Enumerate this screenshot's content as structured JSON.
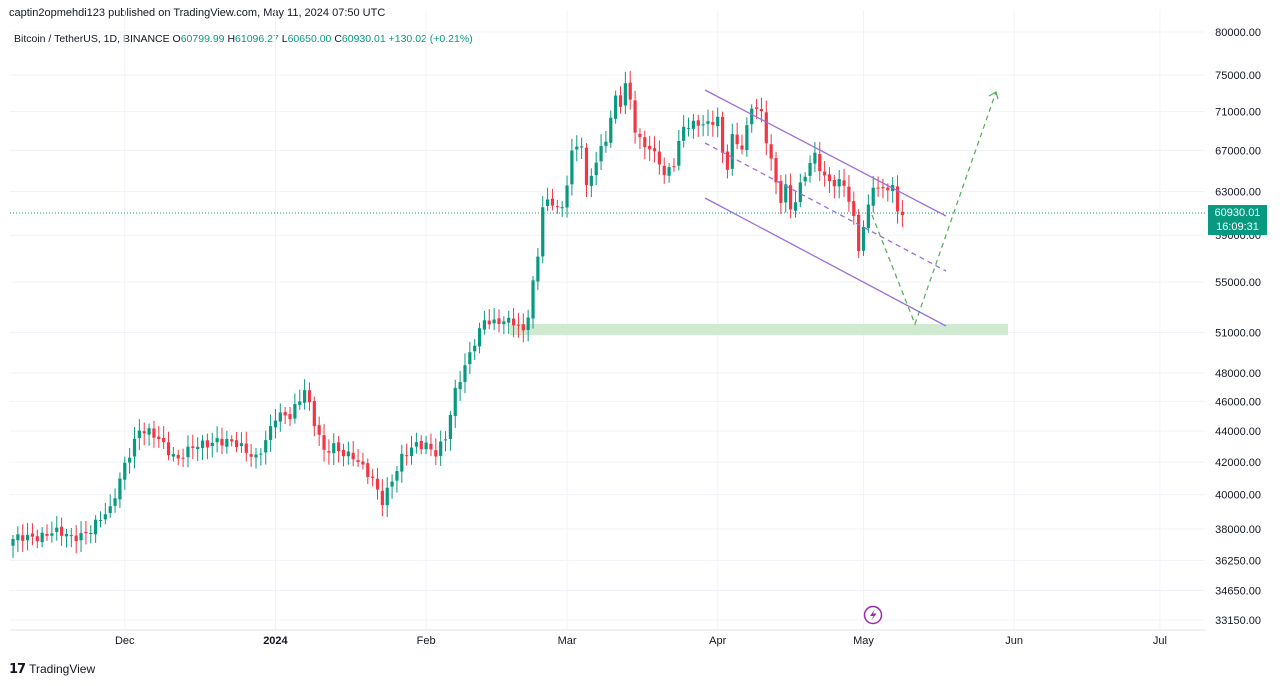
{
  "header": {
    "publisher": "captin2opmehdi123 published on TradingView.com, May 11, 2024 07:50 UTC",
    "symbol": "Bitcoin / TetherUS, 1D, BINANCE",
    "open_label": "O",
    "open": "60799.99",
    "high_label": "H",
    "high": "61096.27",
    "low_label": "L",
    "low": "60650.00",
    "close_label": "C",
    "close": "60930.01",
    "change": "+130.02 (+0.21%)"
  },
  "price_badge": {
    "price": "60930.01",
    "countdown": "16:09:31"
  },
  "footer": {
    "logo": "𝟭𝟳",
    "brand": "TradingView"
  },
  "colors": {
    "up": "#089981",
    "down": "#f23645",
    "channel": "#9c6ede",
    "projection": "#4caf50",
    "zone": "#c8e6c9"
  },
  "chart_data": {
    "type": "candlestick",
    "scale": "log",
    "y_ticks": [
      80000,
      75000,
      71000,
      67000,
      63000,
      59000,
      55000,
      51000,
      48000,
      46000,
      44000,
      42000,
      40000,
      38000,
      36250,
      34650,
      33150
    ],
    "y_tick_labels": [
      "80000.00",
      "75000.00",
      "71000.00",
      "67000.00",
      "63000.00",
      "59000.00",
      "55000.00",
      "51000.00",
      "48000.00",
      "46000.00",
      "44000.00",
      "42000.00",
      "40000.00",
      "38000.00",
      "36250.00",
      "34650.00",
      "33150.00"
    ],
    "x_ticks": [
      {
        "label": "Dec",
        "day": 23
      },
      {
        "label": "2024",
        "day": 54
      },
      {
        "label": "Feb",
        "day": 85
      },
      {
        "label": "Mar",
        "day": 114
      },
      {
        "label": "Apr",
        "day": 145
      },
      {
        "label": "May",
        "day": 175
      },
      {
        "label": "Jun",
        "day": 206
      },
      {
        "label": "Jul",
        "day": 236
      }
    ],
    "last_price": 60930.01,
    "anchors": [
      [
        0,
        37300
      ],
      [
        4,
        37600
      ],
      [
        8,
        37800
      ],
      [
        12,
        37500
      ],
      [
        16,
        38000
      ],
      [
        20,
        39000
      ],
      [
        23,
        42000
      ],
      [
        26,
        44000
      ],
      [
        30,
        43500
      ],
      [
        34,
        42200
      ],
      [
        38,
        43000
      ],
      [
        42,
        43500
      ],
      [
        46,
        43000
      ],
      [
        50,
        42400
      ],
      [
        52,
        43400
      ],
      [
        54,
        44800
      ],
      [
        57,
        45000
      ],
      [
        60,
        47000
      ],
      [
        62,
        44500
      ],
      [
        64,
        42500
      ],
      [
        66,
        43000
      ],
      [
        70,
        42400
      ],
      [
        72,
        41500
      ],
      [
        74,
        40800
      ],
      [
        76,
        39700
      ],
      [
        78,
        41000
      ],
      [
        80,
        42200
      ],
      [
        83,
        43000
      ],
      [
        85,
        43200
      ],
      [
        87,
        42700
      ],
      [
        89,
        43500
      ],
      [
        91,
        46500
      ],
      [
        93,
        48500
      ],
      [
        95,
        50500
      ],
      [
        97,
        52000
      ],
      [
        99,
        51500
      ],
      [
        101,
        51800
      ],
      [
        103,
        52000
      ],
      [
        105,
        51200
      ],
      [
        106,
        52500
      ],
      [
        108,
        57000
      ],
      [
        109,
        61500
      ],
      [
        111,
        62000
      ],
      [
        113,
        61500
      ],
      [
        115,
        66800
      ],
      [
        117,
        67500
      ],
      [
        118,
        63000
      ],
      [
        120,
        66000
      ],
      [
        122,
        68500
      ],
      [
        124,
        72500
      ],
      [
        125,
        71800
      ],
      [
        126,
        73500
      ],
      [
        127,
        72000
      ],
      [
        128,
        69000
      ],
      [
        129,
        68000
      ],
      [
        131,
        67500
      ],
      [
        133,
        66000
      ],
      [
        134,
        64300
      ],
      [
        136,
        65500
      ],
      [
        138,
        69500
      ],
      [
        139,
        69800
      ],
      [
        141,
        70000
      ],
      [
        143,
        69500
      ],
      [
        145,
        70000
      ],
      [
        146,
        66500
      ],
      [
        147,
        65500
      ],
      [
        148,
        68500
      ],
      [
        150,
        67500
      ],
      [
        151,
        69200
      ],
      [
        152,
        71500
      ],
      [
        154,
        70500
      ],
      [
        155,
        68000
      ],
      [
        157,
        64000
      ],
      [
        158,
        62500
      ],
      [
        159,
        63500
      ],
      [
        160,
        61500
      ],
      [
        161,
        62000
      ],
      [
        163,
        64500
      ],
      [
        165,
        66600
      ],
      [
        167,
        64500
      ],
      [
        169,
        63800
      ],
      [
        171,
        63500
      ],
      [
        173,
        60300
      ],
      [
        174,
        58000
      ],
      [
        175,
        59800
      ],
      [
        177,
        63900
      ],
      [
        178,
        63000
      ],
      [
        179,
        63200
      ],
      [
        181,
        63000
      ],
      [
        182,
        61300
      ],
      [
        183,
        60900
      ]
    ]
  }
}
